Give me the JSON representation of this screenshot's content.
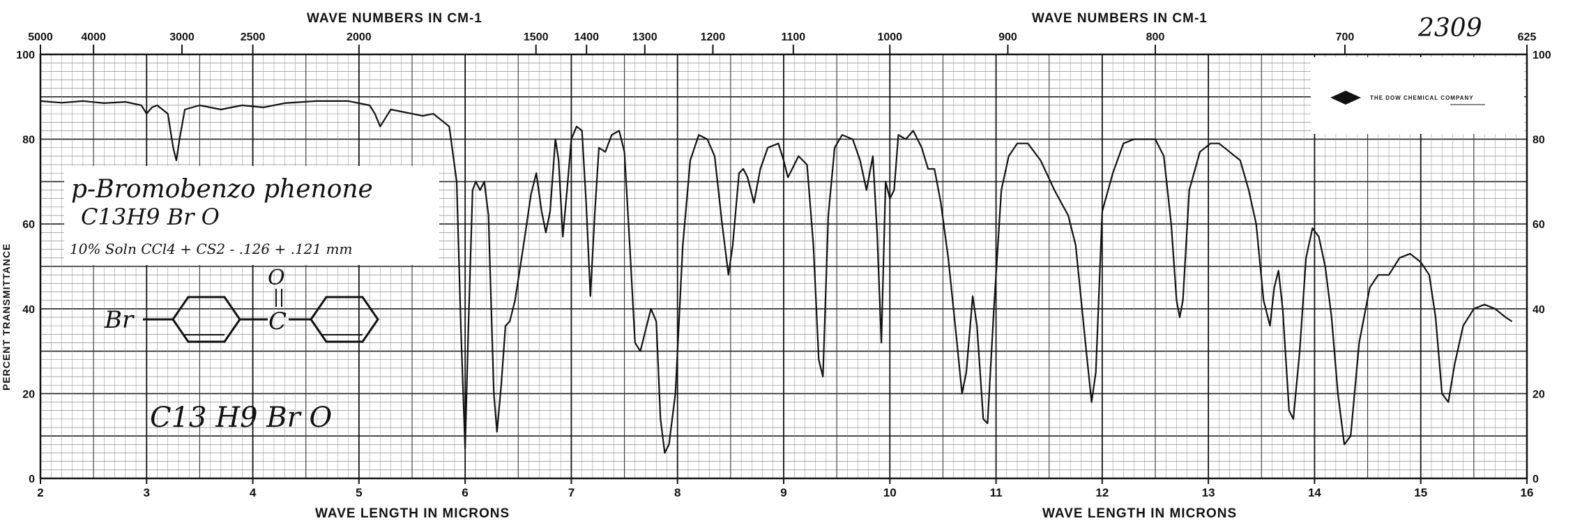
{
  "sample": {
    "name": "p-Bromobenzo phenone",
    "formula": "C13H9 Br O",
    "conditions": "10% Soln CCl4 + CS2 - .126 + .121 mm",
    "structure_left": "Br",
    "structure_center": "C",
    "structure_o": "O",
    "formula_box": "C13 H9 Br O"
  },
  "spectrum_number": "2309",
  "company": "THE DOW CHEMICAL COMPANY",
  "chart_data": {
    "type": "line",
    "title": "",
    "top_axis_label_left": "WAVE NUMBERS IN CM-1",
    "top_axis_label_right": "WAVE NUMBERS IN CM-1",
    "xlabel_left": "WAVE LENGTH IN MICRONS",
    "xlabel_right": "WAVE LENGTH IN MICRONS",
    "ylabel": "PERCENT TRANSMITTANCE",
    "xlim": [
      2,
      16
    ],
    "ylim": [
      0,
      100
    ],
    "x_ticks": [
      "2",
      "3",
      "4",
      "5",
      "6",
      "7",
      "8",
      "9",
      "10",
      "11",
      "12",
      "13",
      "14",
      "15",
      "16"
    ],
    "y_ticks_left": [
      "0",
      "20",
      "40",
      "60",
      "80",
      "100"
    ],
    "y_ticks_right": [
      "0",
      "20",
      "40",
      "60",
      "80",
      "100"
    ],
    "top_wavenumber_ticks": [
      {
        "label": "5000",
        "micron": 2.0
      },
      {
        "label": "4000",
        "micron": 2.5
      },
      {
        "label": "3000",
        "micron": 3.333
      },
      {
        "label": "2500",
        "micron": 4.0
      },
      {
        "label": "2000",
        "micron": 5.0
      },
      {
        "label": "1500",
        "micron": 6.667
      },
      {
        "label": "1400",
        "micron": 7.143
      },
      {
        "label": "1300",
        "micron": 7.692
      },
      {
        "label": "1200",
        "micron": 8.333
      },
      {
        "label": "1100",
        "micron": 9.091
      },
      {
        "label": "1000",
        "micron": 10.0
      },
      {
        "label": "900",
        "micron": 11.111
      },
      {
        "label": "800",
        "micron": 12.5
      },
      {
        "label": "700",
        "micron": 14.286
      },
      {
        "label": "625",
        "micron": 16.0
      }
    ],
    "grid": true,
    "series": [
      {
        "points": [
          [
            2.0,
            89
          ],
          [
            2.2,
            88.6
          ],
          [
            2.4,
            89
          ],
          [
            2.6,
            88.5
          ],
          [
            2.8,
            88.8
          ],
          [
            2.95,
            88
          ],
          [
            3.0,
            86
          ],
          [
            3.05,
            87.5
          ],
          [
            3.1,
            88
          ],
          [
            3.2,
            86
          ],
          [
            3.25,
            78
          ],
          [
            3.28,
            75
          ],
          [
            3.31,
            80
          ],
          [
            3.36,
            87
          ],
          [
            3.5,
            88
          ],
          [
            3.7,
            87
          ],
          [
            3.9,
            88
          ],
          [
            4.1,
            87.5
          ],
          [
            4.3,
            88.5
          ],
          [
            4.6,
            89
          ],
          [
            4.9,
            89
          ],
          [
            5.1,
            88
          ],
          [
            5.15,
            86
          ],
          [
            5.2,
            83
          ],
          [
            5.25,
            85
          ],
          [
            5.3,
            87
          ],
          [
            5.5,
            86
          ],
          [
            5.6,
            85.5
          ],
          [
            5.7,
            86
          ],
          [
            5.85,
            83
          ],
          [
            5.92,
            70
          ],
          [
            5.96,
            35
          ],
          [
            6.0,
            7
          ],
          [
            6.03,
            35
          ],
          [
            6.07,
            68
          ],
          [
            6.1,
            70
          ],
          [
            6.14,
            68
          ],
          [
            6.18,
            70
          ],
          [
            6.22,
            62
          ],
          [
            6.27,
            20
          ],
          [
            6.3,
            11
          ],
          [
            6.34,
            22
          ],
          [
            6.38,
            36
          ],
          [
            6.42,
            37
          ],
          [
            6.47,
            42
          ],
          [
            6.55,
            55
          ],
          [
            6.62,
            67
          ],
          [
            6.67,
            72
          ],
          [
            6.72,
            63
          ],
          [
            6.76,
            58
          ],
          [
            6.8,
            63
          ],
          [
            6.85,
            80
          ],
          [
            6.88,
            75
          ],
          [
            6.92,
            57
          ],
          [
            6.96,
            68
          ],
          [
            7.0,
            80
          ],
          [
            7.05,
            83
          ],
          [
            7.1,
            82
          ],
          [
            7.14,
            65
          ],
          [
            7.18,
            43
          ],
          [
            7.22,
            62
          ],
          [
            7.26,
            78
          ],
          [
            7.32,
            77
          ],
          [
            7.38,
            81
          ],
          [
            7.45,
            82
          ],
          [
            7.5,
            77
          ],
          [
            7.55,
            55
          ],
          [
            7.6,
            32
          ],
          [
            7.65,
            30
          ],
          [
            7.7,
            35
          ],
          [
            7.75,
            40
          ],
          [
            7.8,
            37
          ],
          [
            7.84,
            14
          ],
          [
            7.88,
            6
          ],
          [
            7.92,
            8
          ],
          [
            7.98,
            20
          ],
          [
            8.05,
            55
          ],
          [
            8.12,
            75
          ],
          [
            8.2,
            81
          ],
          [
            8.28,
            80
          ],
          [
            8.35,
            76
          ],
          [
            8.42,
            60
          ],
          [
            8.48,
            48
          ],
          [
            8.52,
            55
          ],
          [
            8.58,
            72
          ],
          [
            8.62,
            73
          ],
          [
            8.66,
            71
          ],
          [
            8.72,
            65
          ],
          [
            8.78,
            73
          ],
          [
            8.85,
            78
          ],
          [
            8.95,
            79
          ],
          [
            9.0,
            75
          ],
          [
            9.04,
            71
          ],
          [
            9.08,
            73
          ],
          [
            9.14,
            76
          ],
          [
            9.22,
            74
          ],
          [
            9.28,
            55
          ],
          [
            9.33,
            28
          ],
          [
            9.37,
            24
          ],
          [
            9.42,
            62
          ],
          [
            9.48,
            78
          ],
          [
            9.55,
            81
          ],
          [
            9.65,
            80
          ],
          [
            9.72,
            75
          ],
          [
            9.78,
            68
          ],
          [
            9.84,
            76
          ],
          [
            9.88,
            58
          ],
          [
            9.92,
            32
          ],
          [
            9.96,
            70
          ],
          [
            10.0,
            66
          ],
          [
            10.04,
            68
          ],
          [
            10.08,
            81
          ],
          [
            10.15,
            80
          ],
          [
            10.22,
            82
          ],
          [
            10.3,
            78
          ],
          [
            10.36,
            73
          ],
          [
            10.42,
            73
          ],
          [
            10.48,
            65
          ],
          [
            10.55,
            52
          ],
          [
            10.62,
            35
          ],
          [
            10.68,
            20
          ],
          [
            10.72,
            25
          ],
          [
            10.78,
            43
          ],
          [
            10.82,
            36
          ],
          [
            10.88,
            14
          ],
          [
            10.92,
            13
          ],
          [
            10.98,
            40
          ],
          [
            11.05,
            68
          ],
          [
            11.12,
            76
          ],
          [
            11.2,
            79
          ],
          [
            11.3,
            79
          ],
          [
            11.42,
            75
          ],
          [
            11.55,
            68
          ],
          [
            11.68,
            62
          ],
          [
            11.75,
            55
          ],
          [
            11.85,
            30
          ],
          [
            11.9,
            18
          ],
          [
            11.94,
            25
          ],
          [
            12.0,
            63
          ],
          [
            12.1,
            72
          ],
          [
            12.2,
            79
          ],
          [
            12.3,
            80
          ],
          [
            12.4,
            80
          ],
          [
            12.5,
            80
          ],
          [
            12.58,
            76
          ],
          [
            12.65,
            60
          ],
          [
            12.7,
            42
          ],
          [
            12.73,
            38
          ],
          [
            12.76,
            42
          ],
          [
            12.82,
            68
          ],
          [
            12.92,
            77
          ],
          [
            13.02,
            79
          ],
          [
            13.1,
            79
          ],
          [
            13.2,
            77
          ],
          [
            13.3,
            75
          ],
          [
            13.38,
            68
          ],
          [
            13.45,
            60
          ],
          [
            13.52,
            42
          ],
          [
            13.58,
            36
          ],
          [
            13.62,
            45
          ],
          [
            13.66,
            49
          ],
          [
            13.7,
            40
          ],
          [
            13.76,
            16
          ],
          [
            13.8,
            14
          ],
          [
            13.86,
            30
          ],
          [
            13.92,
            52
          ],
          [
            13.98,
            59
          ],
          [
            14.04,
            57
          ],
          [
            14.1,
            50
          ],
          [
            14.16,
            38
          ],
          [
            14.22,
            20
          ],
          [
            14.28,
            8
          ],
          [
            14.34,
            10
          ],
          [
            14.42,
            32
          ],
          [
            14.52,
            45
          ],
          [
            14.6,
            48
          ],
          [
            14.7,
            48
          ],
          [
            14.8,
            52
          ],
          [
            14.9,
            53
          ],
          [
            15.0,
            51
          ],
          [
            15.08,
            48
          ],
          [
            15.14,
            38
          ],
          [
            15.2,
            20
          ],
          [
            15.26,
            18
          ],
          [
            15.32,
            27
          ],
          [
            15.4,
            36
          ],
          [
            15.5,
            40
          ],
          [
            15.6,
            41
          ],
          [
            15.7,
            40
          ],
          [
            15.8,
            38
          ],
          [
            15.86,
            37
          ]
        ]
      }
    ]
  }
}
